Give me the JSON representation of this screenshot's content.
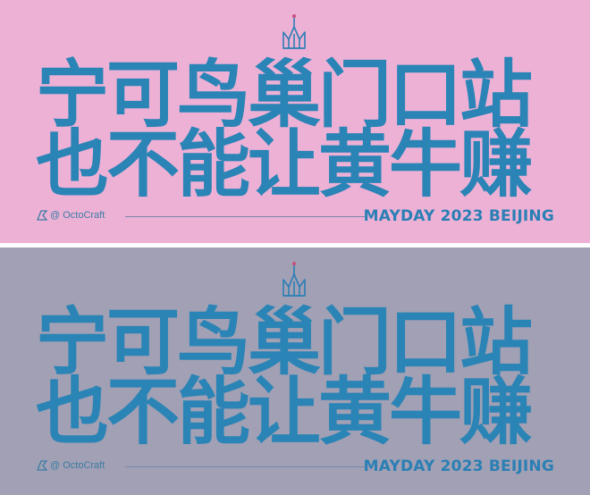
{
  "panels": [
    {
      "id": "pink",
      "background": "#eeb1d6",
      "headline": [
        "宁可鸟巢门口站",
        "也不能让黄牛赚"
      ],
      "brand": "@ OctoCraft",
      "event": "MAYDAY 2023 BEIJING",
      "icons": [
        "crown-logo-icon",
        "brand-mark-icon"
      ]
    },
    {
      "id": "gray",
      "background": "#a1a0b4",
      "headline": [
        "宁可鸟巢门口站",
        "也不能让黄牛赚"
      ],
      "brand": "@ OctoCraft",
      "event": "MAYDAY 2023 BEIJING",
      "icons": [
        "crown-logo-icon",
        "brand-mark-icon"
      ]
    }
  ],
  "colors": {
    "text_blue": "#2a84b6",
    "pink": "#eeb1d6",
    "gray": "#a1a0b4"
  }
}
